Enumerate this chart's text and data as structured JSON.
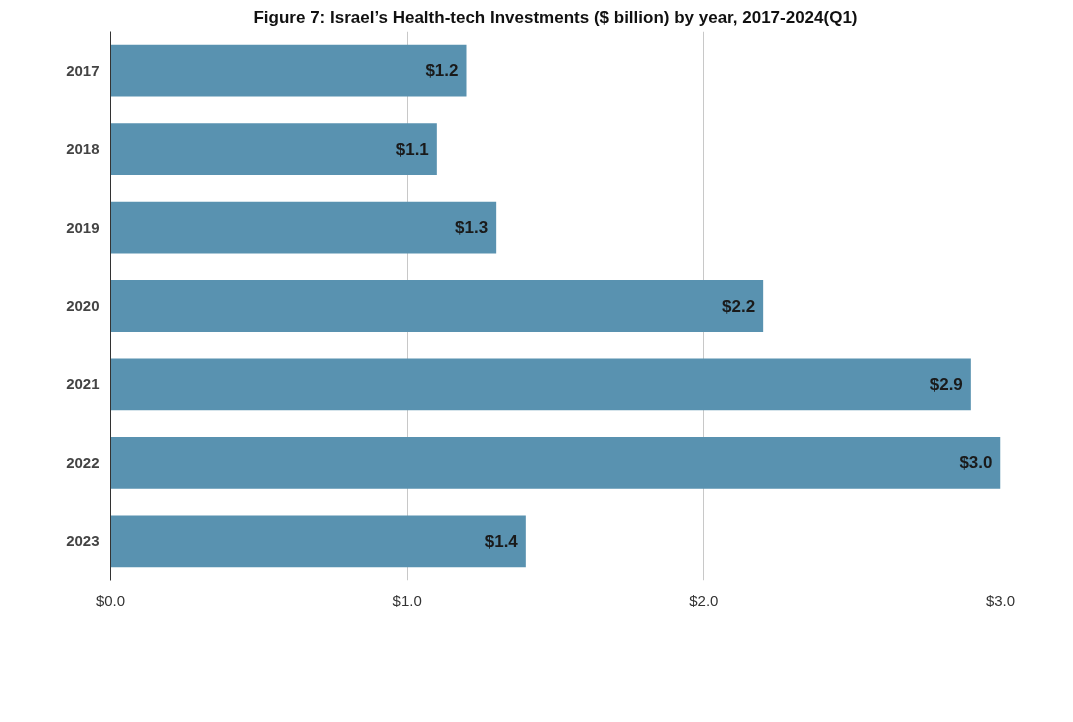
{
  "chart_data": {
    "type": "bar",
    "orientation": "horizontal",
    "title": "Figure 7: Israel’s Health-tech Investments ($ billion) by year, 2017-2024(Q1)",
    "categories": [
      "2017",
      "2018",
      "2019",
      "2020",
      "2021",
      "2022",
      "2023"
    ],
    "values": [
      1.2,
      1.1,
      1.3,
      2.2,
      2.9,
      3.0,
      1.4
    ],
    "value_labels": [
      "$1.2",
      "$1.1",
      "$1.3",
      "$2.2",
      "$2.9",
      "$3.0",
      "$1.4"
    ],
    "color": "#5992b0",
    "xlim": [
      0,
      3.0
    ],
    "xticks": [
      {
        "value": 0,
        "label": "$0.0"
      },
      {
        "value": 1,
        "label": "$1.0"
      },
      {
        "value": 2,
        "label": "$2.0"
      },
      {
        "value": 3,
        "label": "$3.0"
      }
    ],
    "grid": "x"
  }
}
